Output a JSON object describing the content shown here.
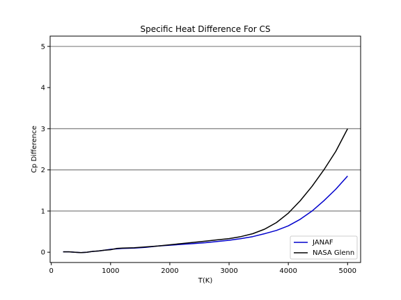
{
  "chart_data": {
    "type": "line",
    "title": "Specific Heat Difference For CS",
    "xlabel": "T(K)",
    "ylabel": "Cp Difference",
    "xlim": [
      -20,
      5220
    ],
    "ylim": [
      -0.25,
      5.25
    ],
    "xticks": [
      0,
      1000,
      2000,
      3000,
      4000,
      5000
    ],
    "yticks": [
      0,
      1,
      2,
      3,
      4,
      5
    ],
    "hgrid": [
      1,
      2,
      3,
      5
    ],
    "grid_color": "#808080",
    "legend": {
      "placement": "lower-right",
      "entries": [
        "JANAF",
        "NASA Glenn"
      ]
    },
    "series": [
      {
        "name": "JANAF",
        "color": "#0000cc",
        "x": [
          200,
          300,
          400,
          500,
          600,
          700,
          800,
          900,
          1000,
          1100,
          1200,
          1400,
          1600,
          1800,
          2000,
          2200,
          2400,
          2600,
          2800,
          3000,
          3200,
          3400,
          3600,
          3800,
          4000,
          4200,
          4400,
          4600,
          4800,
          5000
        ],
        "y": [
          0.01,
          0.01,
          0.0,
          -0.01,
          0.0,
          0.02,
          0.03,
          0.05,
          0.07,
          0.08,
          0.09,
          0.1,
          0.12,
          0.15,
          0.17,
          0.19,
          0.21,
          0.23,
          0.26,
          0.29,
          0.33,
          0.38,
          0.45,
          0.53,
          0.64,
          0.8,
          1.0,
          1.25,
          1.53,
          1.85
        ]
      },
      {
        "name": "NASA Glenn",
        "color": "#000000",
        "x": [
          200,
          300,
          400,
          500,
          600,
          700,
          800,
          900,
          1000,
          1100,
          1200,
          1400,
          1600,
          1800,
          2000,
          2200,
          2400,
          2600,
          2800,
          3000,
          3200,
          3400,
          3600,
          3800,
          4000,
          4200,
          4400,
          4600,
          4800,
          5000
        ],
        "y": [
          0.01,
          0.01,
          0.0,
          -0.01,
          0.0,
          0.02,
          0.03,
          0.05,
          0.06,
          0.09,
          0.1,
          0.11,
          0.13,
          0.15,
          0.18,
          0.21,
          0.24,
          0.27,
          0.3,
          0.33,
          0.38,
          0.45,
          0.56,
          0.72,
          0.95,
          1.25,
          1.6,
          2.0,
          2.45,
          3.0
        ]
      }
    ]
  }
}
